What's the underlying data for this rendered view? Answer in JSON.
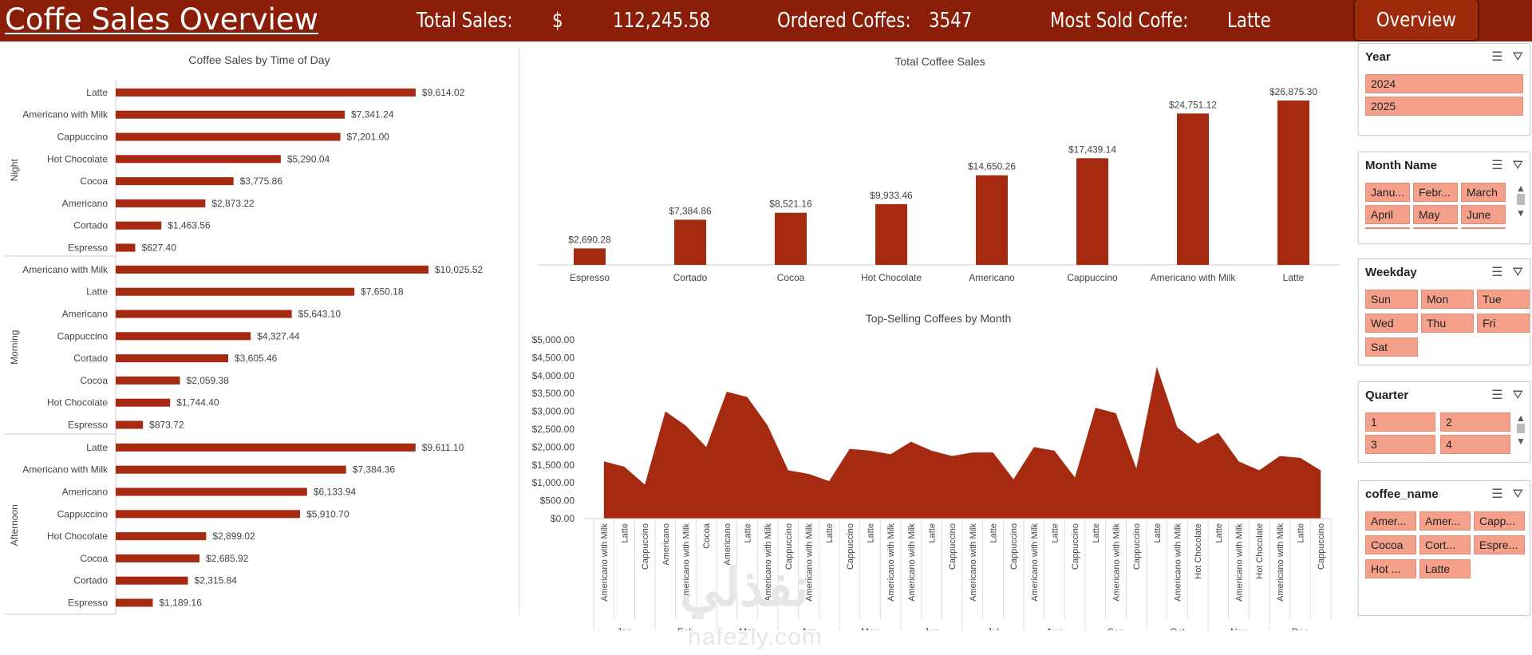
{
  "header": {
    "title": "Coffe Sales  Overview",
    "total_sales_label": "Total Sales:",
    "currency": "$",
    "total_sales_value": "112,245.58",
    "ordered_label": "Ordered Coffes:",
    "ordered_value": "3547",
    "most_sold_label": "Most Sold Coffe:",
    "most_sold_value": "Latte",
    "overview_button": "Overview"
  },
  "colors": {
    "header": "#8a1e08",
    "bar": "#a52a10",
    "slicer_item": "#f4a08a"
  },
  "chart_data": [
    {
      "type": "bar",
      "orientation": "horizontal",
      "title": "Coffee Sales by Time of Day",
      "groups": [
        {
          "name": "Night",
          "categories": [
            "Latte",
            "Americano with Milk",
            "Cappuccino",
            "Hot Chocolate",
            "Cocoa",
            "Americano",
            "Cortado",
            "Espresso"
          ],
          "values": [
            9614.02,
            7341.24,
            7201.0,
            5290.04,
            3775.86,
            2873.22,
            1463.56,
            627.4
          ],
          "labels": [
            "$9,614.02",
            "$7,341.24",
            "$7,201.00",
            "$5,290.04",
            "$3,775.86",
            "$2,873.22",
            "$1,463.56",
            "$627.40"
          ]
        },
        {
          "name": "Morning",
          "categories": [
            "Americano with Milk",
            "Latte",
            "Americano",
            "Cappuccino",
            "Cortado",
            "Cocoa",
            "Hot Chocolate",
            "Espresso"
          ],
          "values": [
            10025.52,
            7650.18,
            5643.1,
            4327.44,
            3605.46,
            2059.38,
            1744.4,
            873.72
          ],
          "labels": [
            "$10,025.52",
            "$7,650.18",
            "$5,643.10",
            "$4,327.44",
            "$3,605.46",
            "$2,059.38",
            "$1,744.40",
            "$873.72"
          ]
        },
        {
          "name": "Afternoon",
          "categories": [
            "Latte",
            "Americano with Milk",
            "Americano",
            "Cappuccino",
            "Hot Chocolate",
            "Cocoa",
            "Cortado",
            "Espresso"
          ],
          "values": [
            9611.1,
            7384.36,
            6133.94,
            5910.7,
            2899.02,
            2685.92,
            2315.84,
            1189.16
          ],
          "labels": [
            "$9,611.10",
            "$7,384.36",
            "$6,133.94",
            "$5,910.70",
            "$2,899.02",
            "$2,685.92",
            "$2,315.84",
            "$1,189.16"
          ]
        }
      ]
    },
    {
      "type": "bar",
      "title": "Total Coffee Sales",
      "categories": [
        "Espresso",
        "Cortado",
        "Cocoa",
        "Hot Chocolate",
        "Americano",
        "Cappuccino",
        "Americano with Milk",
        "Latte"
      ],
      "values": [
        2690.28,
        7384.86,
        8521.16,
        9933.46,
        14650.26,
        17439.14,
        24751.12,
        26875.3
      ],
      "labels": [
        "$2,690.28",
        "$7,384.86",
        "$8,521.16",
        "$9,933.46",
        "$14,650.26",
        "$17,439.14",
        "$24,751.12",
        "$26,875.30"
      ]
    },
    {
      "type": "area",
      "title": "Top-Selling Coffees by Month",
      "ylim": [
        0,
        5000
      ],
      "yticks": [
        "$0.00",
        "$500.00",
        "$1,000.00",
        "$1,500.00",
        "$2,000.00",
        "$2,500.00",
        "$3,000.00",
        "$3,500.00",
        "$4,000.00",
        "$4,500.00",
        "$5,000.00"
      ],
      "months": [
        {
          "name": "Jan",
          "items": [
            [
              "Americano with Milk",
              1600
            ],
            [
              "Latte",
              1450
            ],
            [
              "Cappuccino",
              950
            ]
          ]
        },
        {
          "name": "Feb",
          "items": [
            [
              "Americano",
              3000
            ],
            [
              "Americano with Milk",
              2600
            ],
            [
              "Cocoa",
              2000
            ]
          ]
        },
        {
          "name": "Mar",
          "items": [
            [
              "Americano",
              3550
            ],
            [
              "Latte",
              3400
            ],
            [
              "Americano with Milk",
              2600
            ]
          ]
        },
        {
          "name": "Apr",
          "items": [
            [
              "Cappuccino",
              1350
            ],
            [
              "Americano with Milk",
              1250
            ],
            [
              "Latte",
              1050
            ]
          ]
        },
        {
          "name": "May",
          "items": [
            [
              "Cappuccino",
              1950
            ],
            [
              "Latte",
              1900
            ],
            [
              "Americano with Milk",
              1800
            ]
          ]
        },
        {
          "name": "Jun",
          "items": [
            [
              "Americano with Milk",
              2150
            ],
            [
              "Latte",
              1900
            ],
            [
              "Cappuccino",
              1750
            ]
          ]
        },
        {
          "name": "Jul",
          "items": [
            [
              "Americano with Milk",
              1850
            ],
            [
              "Latte",
              1850
            ],
            [
              "Cappuccino",
              1100
            ]
          ]
        },
        {
          "name": "Aug",
          "items": [
            [
              "Americano with Milk",
              2000
            ],
            [
              "Latte",
              1900
            ],
            [
              "Cappuccino",
              1150
            ]
          ]
        },
        {
          "name": "Sep",
          "items": [
            [
              "Latte",
              3100
            ],
            [
              "Americano with Milk",
              2950
            ],
            [
              "Cappuccino",
              1400
            ]
          ]
        },
        {
          "name": "Oct",
          "items": [
            [
              "Latte",
              4250
            ],
            [
              "Americano with Milk",
              2550
            ],
            [
              "Hot Chocolate",
              2100
            ]
          ]
        },
        {
          "name": "Nov",
          "items": [
            [
              "Latte",
              2400
            ],
            [
              "Americano with Milk",
              1600
            ],
            [
              "Hot Chocolate",
              1350
            ]
          ]
        },
        {
          "name": "Dec",
          "items": [
            [
              "Americano with Milk",
              1750
            ],
            [
              "Latte",
              1700
            ],
            [
              "Cappuccino",
              1350
            ]
          ]
        }
      ]
    }
  ],
  "slicers": {
    "year": {
      "title": "Year",
      "items": [
        "2024",
        "2025"
      ]
    },
    "month": {
      "title": "Month Name",
      "items": [
        "Janu...",
        "Febr...",
        "March",
        "April",
        "May",
        "June"
      ]
    },
    "weekday": {
      "title": "Weekday",
      "items": [
        "Sun",
        "Mon",
        "Tue",
        "Wed",
        "Thu",
        "Fri",
        "Sat"
      ]
    },
    "quarter": {
      "title": "Quarter",
      "items": [
        "1",
        "2",
        "3",
        "4"
      ]
    },
    "coffee": {
      "title": "coffee_name",
      "items": [
        "Amer...",
        "Amer...",
        "Capp...",
        "Cocoa",
        "Cort...",
        "Espre...",
        "Hot ...",
        "Latte"
      ]
    }
  },
  "icons": {
    "multiselect": "multiselect-icon",
    "clear_filter": "clear-filter-icon"
  },
  "watermark": {
    "arabic": "نفذلي",
    "latin": "nafezly.com"
  }
}
